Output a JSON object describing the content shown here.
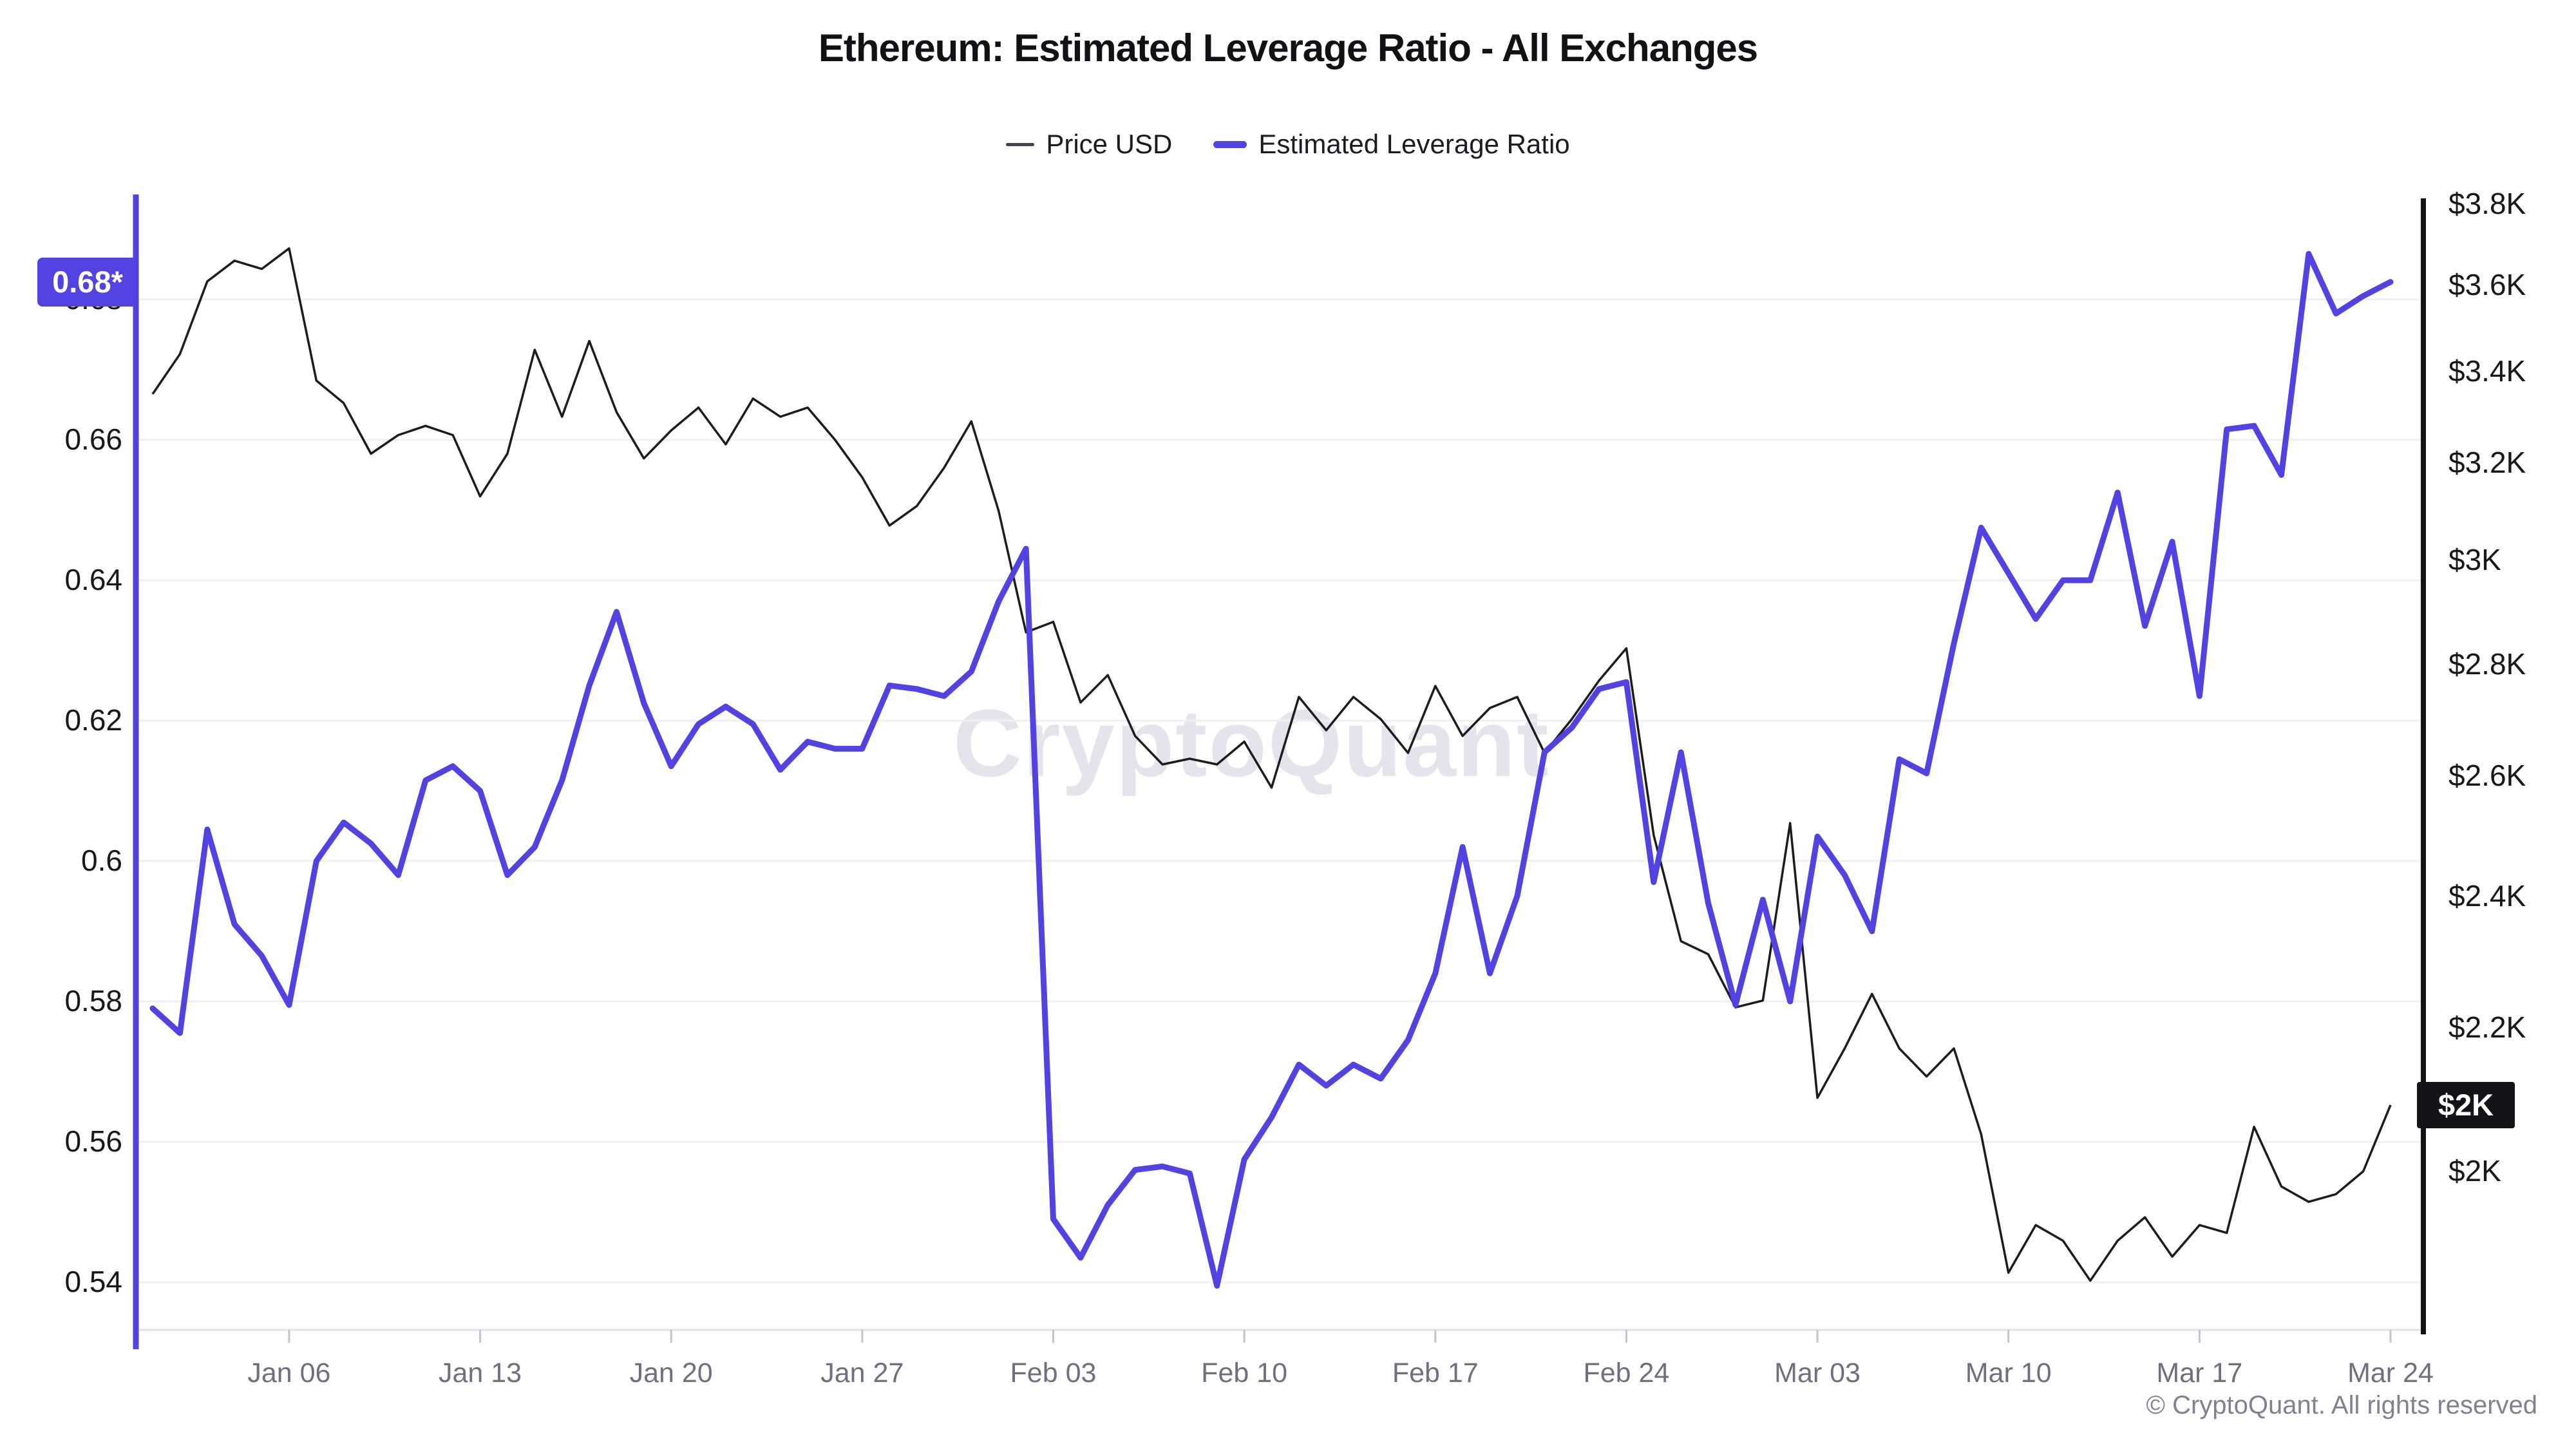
{
  "header": {
    "title": "Ethereum: Estimated Leverage Ratio - All Exchanges",
    "legend": [
      {
        "label": "Price USD",
        "color": "#43434b"
      },
      {
        "label": "Estimated Leverage Ratio",
        "color": "#5142e1"
      }
    ]
  },
  "colors": {
    "accent_purple": "#5142e1",
    "price_line": "#1b1b20",
    "gridline": "#f0f0f3",
    "bottom_axis": "#e2e2e8",
    "tick_mark": "#c4c4cc",
    "left_badge_bg": "#5142e1",
    "right_badge_bg": "#141418"
  },
  "watermark": "CryptoQuant",
  "footer": "© CryptoQuant. All rights reserved",
  "chart_data": {
    "type": "line",
    "title": "Ethereum: Estimated Leverage Ratio - All Exchanges",
    "grid": "horizontal",
    "legend_position": "top",
    "x": [
      "Jan 01",
      "Jan 02",
      "Jan 03",
      "Jan 04",
      "Jan 05",
      "Jan 06",
      "Jan 07",
      "Jan 08",
      "Jan 09",
      "Jan 10",
      "Jan 11",
      "Jan 12",
      "Jan 13",
      "Jan 14",
      "Jan 15",
      "Jan 16",
      "Jan 17",
      "Jan 18",
      "Jan 19",
      "Jan 20",
      "Jan 21",
      "Jan 22",
      "Jan 23",
      "Jan 24",
      "Jan 25",
      "Jan 26",
      "Jan 27",
      "Jan 28",
      "Jan 29",
      "Jan 30",
      "Jan 31",
      "Feb 01",
      "Feb 02",
      "Feb 03",
      "Feb 04",
      "Feb 05",
      "Feb 06",
      "Feb 07",
      "Feb 08",
      "Feb 09",
      "Feb 10",
      "Feb 11",
      "Feb 12",
      "Feb 13",
      "Feb 14",
      "Feb 15",
      "Feb 16",
      "Feb 17",
      "Feb 18",
      "Feb 19",
      "Feb 20",
      "Feb 21",
      "Feb 22",
      "Feb 23",
      "Feb 24",
      "Feb 25",
      "Feb 26",
      "Feb 27",
      "Feb 28",
      "Mar 01",
      "Mar 02",
      "Mar 03",
      "Mar 04",
      "Mar 05",
      "Mar 06",
      "Mar 07",
      "Mar 08",
      "Mar 09",
      "Mar 10",
      "Mar 11",
      "Mar 12",
      "Mar 13",
      "Mar 14",
      "Mar 15",
      "Mar 16",
      "Mar 17",
      "Mar 18",
      "Mar 19",
      "Mar 20",
      "Mar 21",
      "Mar 22",
      "Mar 23",
      "Mar 24"
    ],
    "series": [
      {
        "name": "Price USD",
        "axis": "right",
        "unit": "USD (K)",
        "color": "#1b1b20",
        "values": [
          3.35,
          3.44,
          3.61,
          3.66,
          3.64,
          3.69,
          3.38,
          3.33,
          3.22,
          3.26,
          3.28,
          3.26,
          3.13,
          3.22,
          3.45,
          3.3,
          3.47,
          3.31,
          3.21,
          3.27,
          3.32,
          3.24,
          3.34,
          3.3,
          3.32,
          3.25,
          3.17,
          3.07,
          3.11,
          3.19,
          3.29,
          3.1,
          2.86,
          2.88,
          2.73,
          2.78,
          2.67,
          2.62,
          2.63,
          2.62,
          2.66,
          2.58,
          2.74,
          2.68,
          2.74,
          2.7,
          2.64,
          2.76,
          2.67,
          2.72,
          2.74,
          2.64,
          2.7,
          2.77,
          2.83,
          2.5,
          2.33,
          2.31,
          2.23,
          2.24,
          2.52,
          2.1,
          2.17,
          2.25,
          2.17,
          2.13,
          2.17,
          2.05,
          1.87,
          1.93,
          1.91,
          1.86,
          1.91,
          1.94,
          1.89,
          1.93,
          1.92,
          2.06,
          1.98,
          1.96,
          1.97,
          2.0,
          2.09
        ]
      },
      {
        "name": "Estimated Leverage Ratio",
        "axis": "left",
        "unit": "ratio",
        "color": "#5142e1",
        "values": [
          0.579,
          0.5755,
          0.6045,
          0.591,
          0.5865,
          0.5795,
          0.6,
          0.6055,
          0.6025,
          0.598,
          0.6115,
          0.6135,
          0.61,
          0.598,
          0.602,
          0.6115,
          0.625,
          0.6355,
          0.6225,
          0.6135,
          0.6195,
          0.622,
          0.6195,
          0.613,
          0.617,
          0.616,
          0.616,
          0.625,
          0.6245,
          0.6235,
          0.627,
          0.637,
          0.6445,
          0.549,
          0.5435,
          0.551,
          0.556,
          0.5565,
          0.5555,
          0.5395,
          0.5575,
          0.5635,
          0.571,
          0.568,
          0.571,
          0.569,
          0.5745,
          0.584,
          0.602,
          0.584,
          0.595,
          0.6155,
          0.619,
          0.6245,
          0.6255,
          0.597,
          0.6155,
          0.594,
          0.5795,
          0.5945,
          0.58,
          0.6035,
          0.598,
          0.59,
          0.6145,
          0.6125,
          0.631,
          0.6475,
          0.641,
          0.6345,
          0.64,
          0.64,
          0.6525,
          0.6335,
          0.6455,
          0.6235,
          0.6615,
          0.662,
          0.655,
          0.6865,
          0.678,
          0.6805,
          0.6825
        ]
      }
    ],
    "left_axis": {
      "scale": "linear",
      "tick_labels": [
        "0.68",
        "0.66",
        "0.64",
        "0.62",
        "0.6",
        "0.58",
        "0.56",
        "0.54"
      ],
      "tick_values": [
        0.68,
        0.66,
        0.64,
        0.62,
        0.6,
        0.58,
        0.56,
        0.54
      ],
      "current_value_badge": "0.68*"
    },
    "right_axis": {
      "scale": "log",
      "tick_labels": [
        "$3.8K",
        "$3.6K",
        "$3.4K",
        "$3.2K",
        "$3K",
        "$2.8K",
        "$2.6K",
        "$2.4K",
        "$2.2K",
        "$2K"
      ],
      "tick_values": [
        3.8,
        3.6,
        3.4,
        3.2,
        3.0,
        2.8,
        2.6,
        2.4,
        2.2,
        2.0
      ],
      "current_value_badge": "$2K"
    },
    "x_ticks": {
      "indices": [
        5,
        12,
        19,
        26,
        33,
        40,
        47,
        54,
        61,
        68,
        75,
        82
      ],
      "labels": [
        "Jan 06",
        "Jan 13",
        "Jan 20",
        "Jan 27",
        "Feb 03",
        "Feb 10",
        "Feb 17",
        "Feb 24",
        "Mar 03",
        "Mar 10",
        "Mar 17",
        "Mar 24"
      ]
    }
  }
}
